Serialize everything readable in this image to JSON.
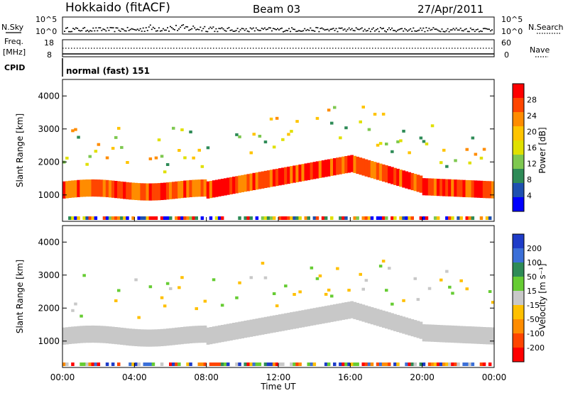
{
  "header": {
    "station": "Hokkaido (fitACF)",
    "beam": "Beam 03",
    "date": "27/Apr/2011"
  },
  "top_panels": {
    "nsky_label": "N.Sky",
    "nsky_ticks": [
      "10^5",
      "10^0"
    ],
    "nsearch_label": "N.Search",
    "nsearch_ticks": [
      "10^5",
      "10^0"
    ],
    "freq_label": "Freq.",
    "freq_unit": "[MHz]",
    "freq_ticks": [
      "18",
      "8"
    ],
    "nave_label": "Nave",
    "nave_ticks": [
      "60",
      "0"
    ],
    "cpid_label": "CPID",
    "cpid_text": "normal (fast) 151"
  },
  "chart_data": [
    {
      "type": "heatmap",
      "name": "power-panel",
      "ylabel": "Slant Range [km]",
      "yticks": [
        1000,
        2000,
        3000,
        4000
      ],
      "ylim": [
        200,
        4500
      ],
      "xlim_hours": [
        0,
        24
      ],
      "colorbar": {
        "label": "Power [dB]",
        "ticks": [
          "28",
          "24",
          "20",
          "16",
          "12",
          "8",
          "4"
        ],
        "colors": [
          "#ff0000",
          "#ff4500",
          "#ff8c00",
          "#ffc400",
          "#e0e000",
          "#7ec850",
          "#2e8b57",
          "#1e50b0",
          "#0000ff"
        ]
      }
    },
    {
      "type": "heatmap",
      "name": "velocity-panel",
      "ylabel": "Slant Range [km]",
      "yticks": [
        1000,
        2000,
        3000,
        4000
      ],
      "ylim": [
        200,
        4500
      ],
      "xlim_hours": [
        0,
        24
      ],
      "colorbar": {
        "label": "Velocity [m s⁻¹]",
        "ticks": [
          "200",
          "100",
          "50",
          "15",
          "-15",
          "-50",
          "-100",
          "-200"
        ],
        "colors": [
          "#1e3cc8",
          "#3b6fd8",
          "#2e8b57",
          "#66cc33",
          "#c8c8c8",
          "#ffc000",
          "#ff8c00",
          "#ff4500",
          "#ff0000"
        ]
      }
    }
  ],
  "xaxis": {
    "label": "Time UT",
    "ticks": [
      "00:00",
      "04:00",
      "08:00",
      "12:00",
      "16:00",
      "20:00",
      "00:00"
    ]
  }
}
